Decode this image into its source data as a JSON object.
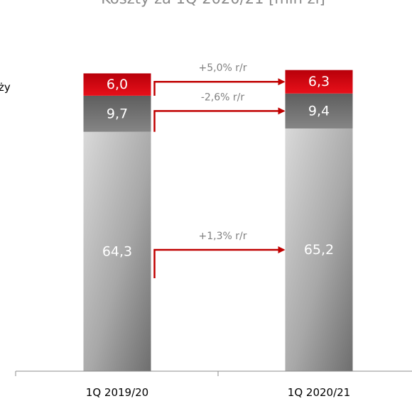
{
  "chart_data": {
    "type": "bar",
    "stacked": true,
    "title": "Koszty za 1Q 2020/21 [mln zł]",
    "legend_fragment": "ży",
    "categories": [
      "1Q 2019/20",
      "1Q 2020/21"
    ],
    "series": [
      {
        "values": [
          64.3,
          65.2
        ],
        "labels": [
          "64,3",
          "65,2"
        ],
        "color": "#9a9a9a"
      },
      {
        "values": [
          9.7,
          9.4
        ],
        "labels": [
          "9,7",
          "9,4"
        ],
        "color": "#6f6f6f"
      },
      {
        "values": [
          6.0,
          6.3
        ],
        "labels": [
          "6,0",
          "6,3"
        ],
        "color": "#d0000f"
      }
    ],
    "annotations": [
      {
        "text": "+5,0% r/r",
        "series_index": 2
      },
      {
        "text": "-2,6% r/r",
        "series_index": 1
      },
      {
        "text": "+1,3% r/r",
        "series_index": 0
      }
    ],
    "arrow_color": "#c00000",
    "ylim": [
      0,
      82
    ]
  }
}
